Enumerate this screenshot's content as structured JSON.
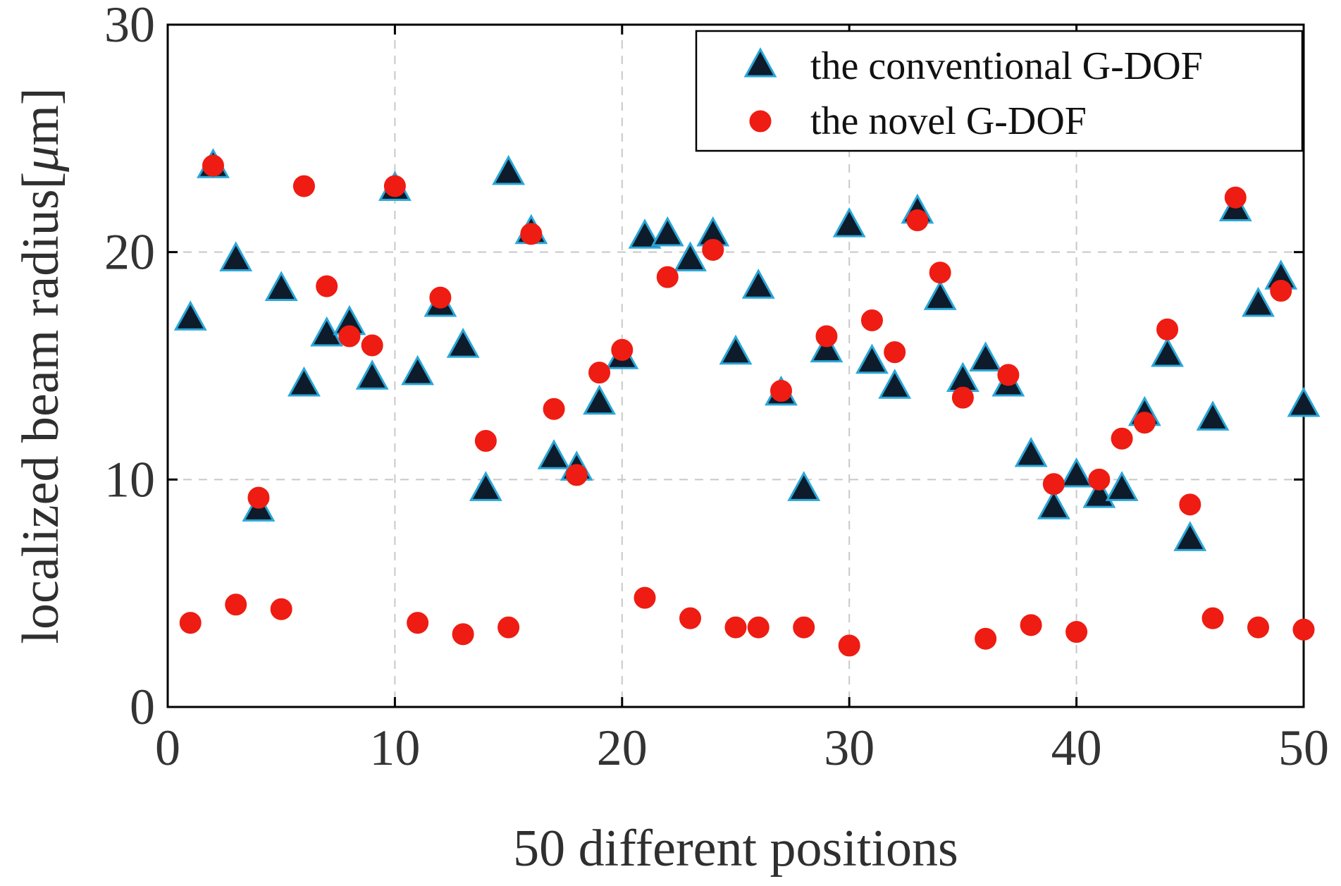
{
  "chart_data": {
    "type": "scatter",
    "title": "",
    "xlabel": "50 different positions",
    "ylabel_text": "localized beam radius[",
    "ylabel_mu": "μ",
    "ylabel_unit": "m]",
    "xlim": [
      0,
      50
    ],
    "ylim": [
      0,
      30
    ],
    "xticks": [
      "0",
      "10",
      "20",
      "30",
      "40",
      "50"
    ],
    "yticks": [
      "0",
      "10",
      "20",
      "30"
    ],
    "grid": true,
    "legend_position": "top-right",
    "colors": {
      "triangle_fill": "#0d1b2a",
      "triangle_edge": "#2aa7d8",
      "circle_fill": "#ee1c12",
      "axis": "#000000"
    },
    "series": [
      {
        "name": "the conventional G-DOF",
        "marker": "triangle",
        "points": [
          [
            1,
            17.1
          ],
          [
            2,
            23.8
          ],
          [
            3,
            19.7
          ],
          [
            4,
            8.7
          ],
          [
            5,
            18.4
          ],
          [
            6,
            14.2
          ],
          [
            7,
            16.4
          ],
          [
            8,
            16.9
          ],
          [
            9,
            14.5
          ],
          [
            10,
            22.8
          ],
          [
            11,
            14.7
          ],
          [
            12,
            17.7
          ],
          [
            13,
            15.9
          ],
          [
            14,
            9.6
          ],
          [
            15,
            23.5
          ],
          [
            16,
            20.9
          ],
          [
            17,
            11.0
          ],
          [
            18,
            10.5
          ],
          [
            19,
            13.4
          ],
          [
            20,
            15.4
          ],
          [
            21,
            20.7
          ],
          [
            22,
            20.8
          ],
          [
            23,
            19.7
          ],
          [
            24,
            20.8
          ],
          [
            25,
            15.6
          ],
          [
            26,
            18.5
          ],
          [
            27,
            13.8
          ],
          [
            28,
            9.6
          ],
          [
            29,
            15.7
          ],
          [
            30,
            21.2
          ],
          [
            31,
            15.2
          ],
          [
            32,
            14.1
          ],
          [
            33,
            21.8
          ],
          [
            34,
            18.0
          ],
          [
            35,
            14.4
          ],
          [
            36,
            15.3
          ],
          [
            37,
            14.2
          ],
          [
            38,
            11.1
          ],
          [
            39,
            8.8
          ],
          [
            40,
            10.2
          ],
          [
            41,
            9.3
          ],
          [
            42,
            9.6
          ],
          [
            43,
            12.9
          ],
          [
            44,
            15.5
          ],
          [
            45,
            7.4
          ],
          [
            46,
            12.7
          ],
          [
            47,
            21.9
          ],
          [
            48,
            17.7
          ],
          [
            49,
            18.9
          ],
          [
            50,
            13.3
          ]
        ]
      },
      {
        "name": "the novel G-DOF",
        "marker": "circle",
        "points": [
          [
            1,
            3.7
          ],
          [
            2,
            23.8
          ],
          [
            3,
            4.5
          ],
          [
            4,
            9.2
          ],
          [
            5,
            4.3
          ],
          [
            6,
            22.9
          ],
          [
            7,
            18.5
          ],
          [
            8,
            16.3
          ],
          [
            9,
            15.9
          ],
          [
            10,
            22.9
          ],
          [
            11,
            3.7
          ],
          [
            12,
            18.0
          ],
          [
            13,
            3.2
          ],
          [
            14,
            11.7
          ],
          [
            15,
            3.5
          ],
          [
            16,
            20.8
          ],
          [
            17,
            13.1
          ],
          [
            18,
            10.2
          ],
          [
            19,
            14.7
          ],
          [
            20,
            15.7
          ],
          [
            21,
            4.8
          ],
          [
            22,
            18.9
          ],
          [
            23,
            3.9
          ],
          [
            24,
            20.1
          ],
          [
            25,
            3.5
          ],
          [
            26,
            3.5
          ],
          [
            27,
            13.9
          ],
          [
            28,
            3.5
          ],
          [
            29,
            16.3
          ],
          [
            30,
            2.7
          ],
          [
            31,
            17.0
          ],
          [
            32,
            15.6
          ],
          [
            33,
            21.4
          ],
          [
            34,
            19.1
          ],
          [
            35,
            13.6
          ],
          [
            36,
            3.0
          ],
          [
            37,
            14.6
          ],
          [
            38,
            3.6
          ],
          [
            39,
            9.8
          ],
          [
            40,
            3.3
          ],
          [
            41,
            10.0
          ],
          [
            42,
            11.8
          ],
          [
            43,
            12.5
          ],
          [
            44,
            16.6
          ],
          [
            45,
            8.9
          ],
          [
            46,
            3.9
          ],
          [
            47,
            22.4
          ],
          [
            48,
            3.5
          ],
          [
            49,
            18.3
          ],
          [
            50,
            3.4
          ]
        ]
      }
    ]
  }
}
